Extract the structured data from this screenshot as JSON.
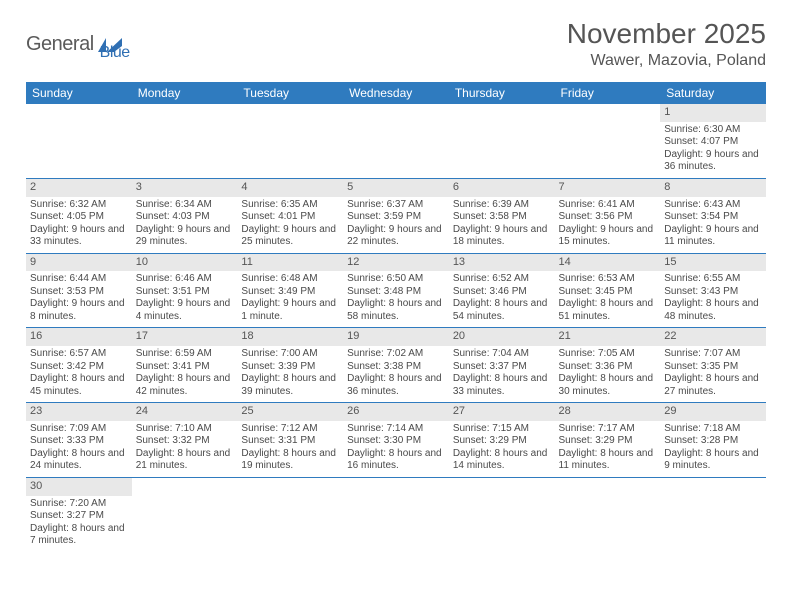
{
  "brand": {
    "part1": "General",
    "part2": "Blue"
  },
  "title": "November 2025",
  "location": "Wawer, Mazovia, Poland",
  "colors": {
    "header_bg": "#2f7bbf",
    "header_text": "#ffffff",
    "daynum_bg": "#e8e8e8",
    "text": "#4a4a4a",
    "rule": "#2f7bbf",
    "logo_gray": "#5a5a5a",
    "logo_blue": "#2f6fb3"
  },
  "typography": {
    "title_fontsize": 28,
    "location_fontsize": 16,
    "header_fontsize": 12,
    "cell_fontsize": 10
  },
  "weekdays": [
    "Sunday",
    "Monday",
    "Tuesday",
    "Wednesday",
    "Thursday",
    "Friday",
    "Saturday"
  ],
  "weeks": [
    [
      null,
      null,
      null,
      null,
      null,
      null,
      {
        "n": "1",
        "sunrise": "Sunrise: 6:30 AM",
        "sunset": "Sunset: 4:07 PM",
        "daylight": "Daylight: 9 hours and 36 minutes."
      }
    ],
    [
      {
        "n": "2",
        "sunrise": "Sunrise: 6:32 AM",
        "sunset": "Sunset: 4:05 PM",
        "daylight": "Daylight: 9 hours and 33 minutes."
      },
      {
        "n": "3",
        "sunrise": "Sunrise: 6:34 AM",
        "sunset": "Sunset: 4:03 PM",
        "daylight": "Daylight: 9 hours and 29 minutes."
      },
      {
        "n": "4",
        "sunrise": "Sunrise: 6:35 AM",
        "sunset": "Sunset: 4:01 PM",
        "daylight": "Daylight: 9 hours and 25 minutes."
      },
      {
        "n": "5",
        "sunrise": "Sunrise: 6:37 AM",
        "sunset": "Sunset: 3:59 PM",
        "daylight": "Daylight: 9 hours and 22 minutes."
      },
      {
        "n": "6",
        "sunrise": "Sunrise: 6:39 AM",
        "sunset": "Sunset: 3:58 PM",
        "daylight": "Daylight: 9 hours and 18 minutes."
      },
      {
        "n": "7",
        "sunrise": "Sunrise: 6:41 AM",
        "sunset": "Sunset: 3:56 PM",
        "daylight": "Daylight: 9 hours and 15 minutes."
      },
      {
        "n": "8",
        "sunrise": "Sunrise: 6:43 AM",
        "sunset": "Sunset: 3:54 PM",
        "daylight": "Daylight: 9 hours and 11 minutes."
      }
    ],
    [
      {
        "n": "9",
        "sunrise": "Sunrise: 6:44 AM",
        "sunset": "Sunset: 3:53 PM",
        "daylight": "Daylight: 9 hours and 8 minutes."
      },
      {
        "n": "10",
        "sunrise": "Sunrise: 6:46 AM",
        "sunset": "Sunset: 3:51 PM",
        "daylight": "Daylight: 9 hours and 4 minutes."
      },
      {
        "n": "11",
        "sunrise": "Sunrise: 6:48 AM",
        "sunset": "Sunset: 3:49 PM",
        "daylight": "Daylight: 9 hours and 1 minute."
      },
      {
        "n": "12",
        "sunrise": "Sunrise: 6:50 AM",
        "sunset": "Sunset: 3:48 PM",
        "daylight": "Daylight: 8 hours and 58 minutes."
      },
      {
        "n": "13",
        "sunrise": "Sunrise: 6:52 AM",
        "sunset": "Sunset: 3:46 PM",
        "daylight": "Daylight: 8 hours and 54 minutes."
      },
      {
        "n": "14",
        "sunrise": "Sunrise: 6:53 AM",
        "sunset": "Sunset: 3:45 PM",
        "daylight": "Daylight: 8 hours and 51 minutes."
      },
      {
        "n": "15",
        "sunrise": "Sunrise: 6:55 AM",
        "sunset": "Sunset: 3:43 PM",
        "daylight": "Daylight: 8 hours and 48 minutes."
      }
    ],
    [
      {
        "n": "16",
        "sunrise": "Sunrise: 6:57 AM",
        "sunset": "Sunset: 3:42 PM",
        "daylight": "Daylight: 8 hours and 45 minutes."
      },
      {
        "n": "17",
        "sunrise": "Sunrise: 6:59 AM",
        "sunset": "Sunset: 3:41 PM",
        "daylight": "Daylight: 8 hours and 42 minutes."
      },
      {
        "n": "18",
        "sunrise": "Sunrise: 7:00 AM",
        "sunset": "Sunset: 3:39 PM",
        "daylight": "Daylight: 8 hours and 39 minutes."
      },
      {
        "n": "19",
        "sunrise": "Sunrise: 7:02 AM",
        "sunset": "Sunset: 3:38 PM",
        "daylight": "Daylight: 8 hours and 36 minutes."
      },
      {
        "n": "20",
        "sunrise": "Sunrise: 7:04 AM",
        "sunset": "Sunset: 3:37 PM",
        "daylight": "Daylight: 8 hours and 33 minutes."
      },
      {
        "n": "21",
        "sunrise": "Sunrise: 7:05 AM",
        "sunset": "Sunset: 3:36 PM",
        "daylight": "Daylight: 8 hours and 30 minutes."
      },
      {
        "n": "22",
        "sunrise": "Sunrise: 7:07 AM",
        "sunset": "Sunset: 3:35 PM",
        "daylight": "Daylight: 8 hours and 27 minutes."
      }
    ],
    [
      {
        "n": "23",
        "sunrise": "Sunrise: 7:09 AM",
        "sunset": "Sunset: 3:33 PM",
        "daylight": "Daylight: 8 hours and 24 minutes."
      },
      {
        "n": "24",
        "sunrise": "Sunrise: 7:10 AM",
        "sunset": "Sunset: 3:32 PM",
        "daylight": "Daylight: 8 hours and 21 minutes."
      },
      {
        "n": "25",
        "sunrise": "Sunrise: 7:12 AM",
        "sunset": "Sunset: 3:31 PM",
        "daylight": "Daylight: 8 hours and 19 minutes."
      },
      {
        "n": "26",
        "sunrise": "Sunrise: 7:14 AM",
        "sunset": "Sunset: 3:30 PM",
        "daylight": "Daylight: 8 hours and 16 minutes."
      },
      {
        "n": "27",
        "sunrise": "Sunrise: 7:15 AM",
        "sunset": "Sunset: 3:29 PM",
        "daylight": "Daylight: 8 hours and 14 minutes."
      },
      {
        "n": "28",
        "sunrise": "Sunrise: 7:17 AM",
        "sunset": "Sunset: 3:29 PM",
        "daylight": "Daylight: 8 hours and 11 minutes."
      },
      {
        "n": "29",
        "sunrise": "Sunrise: 7:18 AM",
        "sunset": "Sunset: 3:28 PM",
        "daylight": "Daylight: 8 hours and 9 minutes."
      }
    ],
    [
      {
        "n": "30",
        "sunrise": "Sunrise: 7:20 AM",
        "sunset": "Sunset: 3:27 PM",
        "daylight": "Daylight: 8 hours and 7 minutes."
      },
      null,
      null,
      null,
      null,
      null,
      null
    ]
  ]
}
